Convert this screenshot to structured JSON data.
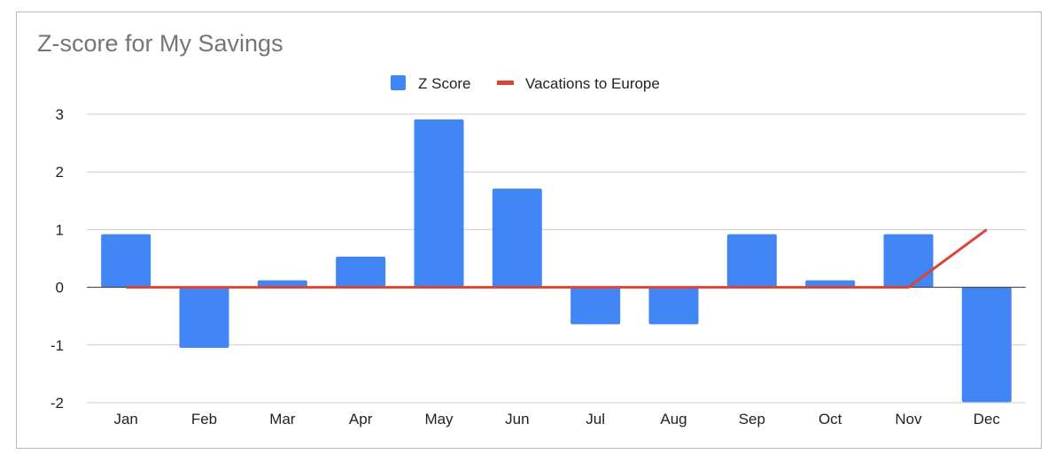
{
  "chart_data": {
    "type": "bar",
    "title": "Z-score for My Savings",
    "categories": [
      "Jan",
      "Feb",
      "Mar",
      "Apr",
      "May",
      "Jun",
      "Jul",
      "Aug",
      "Sep",
      "Oct",
      "Nov",
      "Dec"
    ],
    "series": [
      {
        "name": "Z Score",
        "type": "bar",
        "color": "#4285f4",
        "values": [
          0.92,
          -1.05,
          0.12,
          0.53,
          2.91,
          1.71,
          -0.64,
          -0.64,
          0.92,
          0.12,
          0.92,
          -1.99
        ]
      },
      {
        "name": "Vacations to Europe",
        "type": "line",
        "color": "#db4437",
        "values": [
          0,
          0,
          0,
          0,
          0,
          0,
          0,
          0,
          0,
          0,
          0,
          1
        ]
      }
    ],
    "ylim": [
      -2,
      3
    ],
    "yticks": [
      "3",
      "2",
      "1",
      "0",
      "-1",
      "-2"
    ],
    "ytick_values": [
      3,
      2,
      1,
      0,
      -1,
      -2
    ],
    "grid": true,
    "legend_position": "top-center",
    "xlabel": "",
    "ylabel": ""
  }
}
